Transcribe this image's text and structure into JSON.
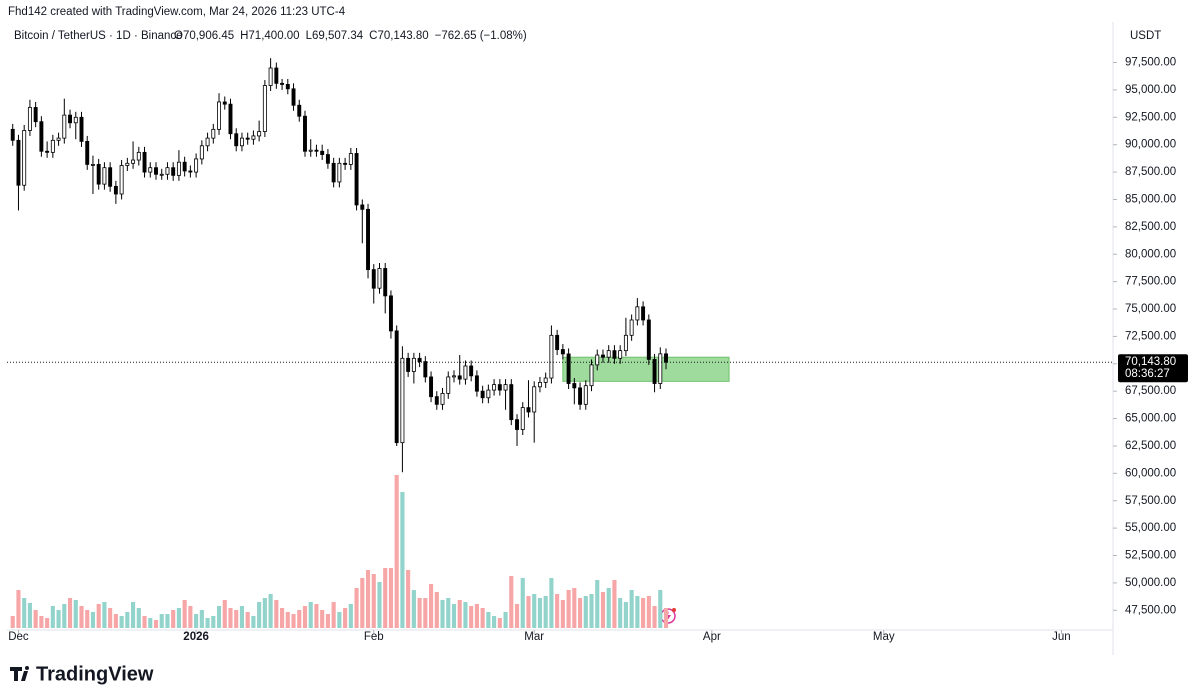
{
  "header": {
    "credit": "Fhd142 created with TradingView.com, Mar 24, 2026 11:23 UTC-4",
    "logo": "TradingView"
  },
  "chart_data": {
    "type": "candlestick",
    "legend": {
      "symbol": "Bitcoin / TetherUS · 1D · Binance",
      "items": [
        "O70,906.45",
        "H71,400.00",
        "L69,507.34",
        "C70,143.80",
        "−762.65 (−1.08%)"
      ]
    },
    "currency": "USDT",
    "up_color": "#ffffff",
    "down_color": "#000000",
    "outline_color": "#000000",
    "volume_up_color": "#92d3cb",
    "volume_down_color": "#f6a6a6",
    "xlim": [
      -1,
      192
    ],
    "ylim": [
      45700,
      99100
    ],
    "xticks": [
      {
        "value": 1,
        "label": "Dec"
      },
      {
        "value": 32,
        "label": "2026"
      },
      {
        "value": 63,
        "label": "Feb"
      },
      {
        "value": 91,
        "label": "Mar"
      },
      {
        "value": 122,
        "label": "Apr"
      },
      {
        "value": 152,
        "label": "May"
      },
      {
        "value": 183,
        "label": "Jun"
      }
    ],
    "yticks": [
      {
        "value": 47500,
        "label": "47,500.00"
      },
      {
        "value": 50000,
        "label": "50,000.00"
      },
      {
        "value": 52500,
        "label": "52,500.00"
      },
      {
        "value": 55000,
        "label": "55,000.00"
      },
      {
        "value": 57500,
        "label": "57,500.00"
      },
      {
        "value": 60000,
        "label": "60,000.00"
      },
      {
        "value": 62500,
        "label": "62,500.00"
      },
      {
        "value": 65000,
        "label": "65,000.00"
      },
      {
        "value": 67500,
        "label": "67,500.00"
      },
      {
        "value": 70000,
        "label": "70,000.00"
      },
      {
        "value": 72500,
        "label": "72,500.00"
      },
      {
        "value": 75000,
        "label": "75,000.00"
      },
      {
        "value": 77500,
        "label": "77,500.00"
      },
      {
        "value": 80000,
        "label": "80,000.00"
      },
      {
        "value": 82500,
        "label": "82,500.00"
      },
      {
        "value": 85000,
        "label": "85,000.00"
      },
      {
        "value": 87500,
        "label": "87,500.00"
      },
      {
        "value": 90000,
        "label": "90,000.00"
      },
      {
        "value": 92500,
        "label": "92,500.00"
      },
      {
        "value": 95000,
        "label": "95,000.00"
      },
      {
        "value": 97500,
        "label": "97,500.00"
      }
    ],
    "open": [
      91400,
      90400,
      86300,
      91300,
      93400,
      92100,
      89400,
      89300,
      90400,
      90600,
      92700,
      92000,
      92500,
      90300,
      88200,
      88200,
      86400,
      87900,
      86200,
      85500,
      88100,
      88300,
      88600,
      89300,
      87500,
      87900,
      87300,
      87300,
      87900,
      87200,
      88400,
      87600,
      87500,
      88700,
      89900,
      90600,
      91400,
      93900,
      93700,
      91000,
      89900,
      90600,
      90500,
      90800,
      91200,
      95400,
      97000,
      95600,
      95500,
      95100,
      93600,
      92600,
      89400,
      89500,
      89400,
      89100,
      88300,
      86600,
      88300,
      88200,
      89200,
      84500,
      84100,
      78600,
      76900,
      78700,
      76200,
      73000,
      62800,
      70500,
      69300,
      70500,
      70200,
      68800,
      67000,
      66300,
      67300,
      68800,
      68900,
      68600,
      69800,
      68900,
      67500,
      66900,
      67600,
      68100,
      67600,
      68100,
      64900,
      64000,
      66000,
      65600,
      67900,
      68300,
      68700,
      72600,
      71300,
      70900,
      68200,
      67800,
      66300,
      68000,
      69900,
      70800,
      70600,
      71200,
      70500,
      71200,
      72600,
      74000,
      75200,
      74000,
      70400,
      68200,
      70906.45
    ],
    "high": [
      91900,
      90900,
      91800,
      94100,
      93900,
      92600,
      90300,
      90900,
      91100,
      94200,
      93200,
      93000,
      93000,
      90800,
      89000,
      88700,
      88400,
      88400,
      86700,
      88600,
      88800,
      90300,
      89800,
      89800,
      88400,
      88400,
      87800,
      88400,
      88400,
      89500,
      88900,
      88100,
      89200,
      90400,
      91100,
      91900,
      94700,
      94400,
      94200,
      91500,
      91100,
      91100,
      91300,
      92200,
      95900,
      97900,
      97500,
      96000,
      96000,
      95600,
      94100,
      93100,
      90500,
      90000,
      90000,
      89600,
      88800,
      88800,
      88800,
      89700,
      89700,
      85000,
      84600,
      79100,
      79200,
      79200,
      76700,
      73500,
      71600,
      71000,
      71000,
      71000,
      70700,
      69300,
      67500,
      67800,
      69300,
      69400,
      70800,
      70300,
      70300,
      69400,
      68000,
      68100,
      68600,
      68600,
      68600,
      68600,
      65400,
      66500,
      68500,
      68400,
      68800,
      69200,
      73500,
      73100,
      71800,
      71400,
      68700,
      68300,
      68500,
      70400,
      71300,
      71300,
      71700,
      71700,
      71700,
      74200,
      74500,
      76000,
      75700,
      74500,
      70900,
      71500,
      71400
    ],
    "low": [
      89900,
      84000,
      85800,
      90800,
      91600,
      88900,
      88800,
      88800,
      89900,
      90100,
      91500,
      90500,
      89800,
      87700,
      85500,
      85900,
      85900,
      85700,
      84600,
      85000,
      87600,
      87800,
      88100,
      87000,
      87000,
      86800,
      86800,
      86800,
      86700,
      86700,
      87100,
      87000,
      87000,
      88200,
      89400,
      90100,
      90900,
      93200,
      90500,
      89400,
      89400,
      90000,
      90000,
      90300,
      90700,
      94900,
      95100,
      95000,
      94600,
      93100,
      92100,
      88900,
      88900,
      88900,
      88600,
      87800,
      86100,
      86100,
      87700,
      87700,
      84000,
      81000,
      77800,
      75500,
      76400,
      74600,
      72300,
      62500,
      60100,
      68800,
      68200,
      69700,
      68300,
      66500,
      65800,
      65800,
      66800,
      68300,
      68100,
      68100,
      68400,
      67000,
      66400,
      66400,
      67100,
      67100,
      65800,
      64400,
      62500,
      63500,
      65100,
      62800,
      67400,
      67800,
      68200,
      70800,
      70400,
      67700,
      66300,
      65800,
      65800,
      67500,
      69400,
      70100,
      70100,
      70000,
      70000,
      70700,
      72100,
      73500,
      73500,
      69900,
      67400,
      67700,
      69507.34
    ],
    "close": [
      90400,
      86300,
      91300,
      93400,
      92100,
      89400,
      89300,
      90400,
      90600,
      92700,
      92000,
      92500,
      90300,
      88200,
      88200,
      86400,
      87900,
      86200,
      85500,
      88100,
      88300,
      88600,
      89300,
      87500,
      87900,
      87300,
      87300,
      87900,
      87200,
      88400,
      87600,
      87500,
      88700,
      89900,
      90600,
      91400,
      93900,
      93700,
      91000,
      89900,
      90600,
      90500,
      90800,
      91200,
      95400,
      97000,
      95600,
      95500,
      95100,
      93600,
      92600,
      89400,
      89500,
      89400,
      89100,
      88300,
      86600,
      88300,
      88200,
      89200,
      84500,
      84100,
      78600,
      76900,
      78700,
      76200,
      73000,
      62800,
      70500,
      69300,
      70500,
      70200,
      68800,
      67000,
      66300,
      67300,
      68800,
      68900,
      68600,
      69800,
      68900,
      67500,
      66900,
      67600,
      68100,
      67600,
      68100,
      64900,
      64000,
      66000,
      65600,
      67900,
      68300,
      68700,
      72600,
      71300,
      70900,
      68200,
      67800,
      66300,
      68000,
      69900,
      70800,
      70600,
      71200,
      70500,
      71200,
      72600,
      74000,
      75200,
      74000,
      70400,
      68200,
      70906.45,
      70143.8
    ],
    "volume": [
      12,
      38,
      30,
      25,
      18,
      12,
      10,
      22,
      18,
      24,
      30,
      28,
      22,
      18,
      16,
      24,
      26,
      20,
      14,
      12,
      16,
      26,
      20,
      12,
      10,
      8,
      14,
      14,
      18,
      20,
      28,
      22,
      14,
      18,
      10,
      12,
      22,
      28,
      20,
      18,
      22,
      16,
      12,
      26,
      30,
      34,
      28,
      20,
      16,
      14,
      18,
      22,
      26,
      24,
      18,
      14,
      26,
      16,
      20,
      24,
      40,
      50,
      58,
      54,
      46,
      60,
      60,
      153,
      136,
      58,
      38,
      30,
      30,
      44,
      36,
      28,
      30,
      24,
      28,
      26,
      22,
      24,
      20,
      16,
      12,
      10,
      16,
      52,
      24,
      50,
      32,
      34,
      30,
      32,
      50,
      34,
      28,
      38,
      40,
      30,
      32,
      34,
      48,
      36,
      40,
      48,
      30,
      26,
      38,
      32,
      30,
      32,
      22,
      38,
      20
    ],
    "zone": {
      "x": [
        96,
        125
      ],
      "y": [
        68400,
        70600
      ],
      "color": "#8ed58c"
    },
    "last_price_label": "70,143.80",
    "countdown": "08:36:27"
  }
}
